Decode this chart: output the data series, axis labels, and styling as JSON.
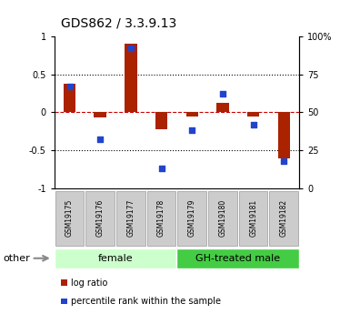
{
  "title": "GDS862 / 3.3.9.13",
  "samples": [
    "GSM19175",
    "GSM19176",
    "GSM19177",
    "GSM19178",
    "GSM19179",
    "GSM19180",
    "GSM19181",
    "GSM19182"
  ],
  "log_ratio": [
    0.38,
    -0.07,
    0.9,
    -0.22,
    -0.05,
    0.12,
    -0.06,
    -0.6
  ],
  "percentile_rank": [
    67,
    32,
    92,
    13,
    38,
    62,
    42,
    18
  ],
  "groups": [
    {
      "label": "female",
      "start": 0,
      "end": 4,
      "color": "#ccffcc"
    },
    {
      "label": "GH-treated male",
      "start": 4,
      "end": 8,
      "color": "#44cc44"
    }
  ],
  "ylim_left": [
    -1,
    1
  ],
  "ylim_right": [
    0,
    100
  ],
  "left_ticks": [
    -1,
    -0.5,
    0,
    0.5,
    1
  ],
  "right_ticks": [
    0,
    25,
    50,
    75,
    100
  ],
  "bar_color": "#aa2200",
  "dot_color": "#2244cc",
  "hline_color": "#cc0000",
  "dot_line_color": "#000000",
  "other_label": "other",
  "legend_log_ratio": "log ratio",
  "legend_percentile": "percentile rank within the sample",
  "sample_bg_color": "#cccccc",
  "sample_border_color": "#999999",
  "title_fontsize": 10,
  "tick_fontsize": 7,
  "label_fontsize": 7,
  "sample_fontsize": 5.5,
  "group_fontsize": 8,
  "legend_fontsize": 7
}
